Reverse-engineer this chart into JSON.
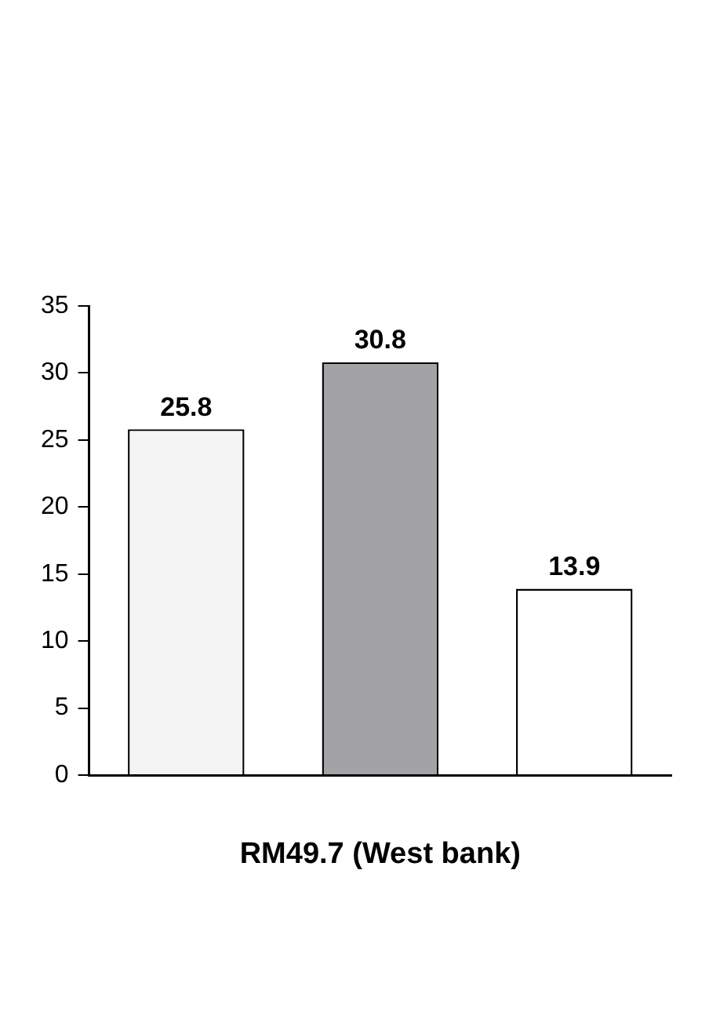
{
  "chart_data": {
    "type": "bar",
    "xlabel": "RM49.7 (West bank)",
    "categories": [
      null,
      null,
      null
    ],
    "values": [
      25.8,
      30.8,
      13.9
    ],
    "colors": [
      "#f4f4f4",
      "#a3a3a5",
      "#ffffff"
    ],
    "ylim": [
      0,
      35
    ],
    "yticks": [
      0,
      5,
      10,
      15,
      20,
      25,
      30,
      35
    ],
    "grid": false,
    "legend": false,
    "data_labels": true
  }
}
